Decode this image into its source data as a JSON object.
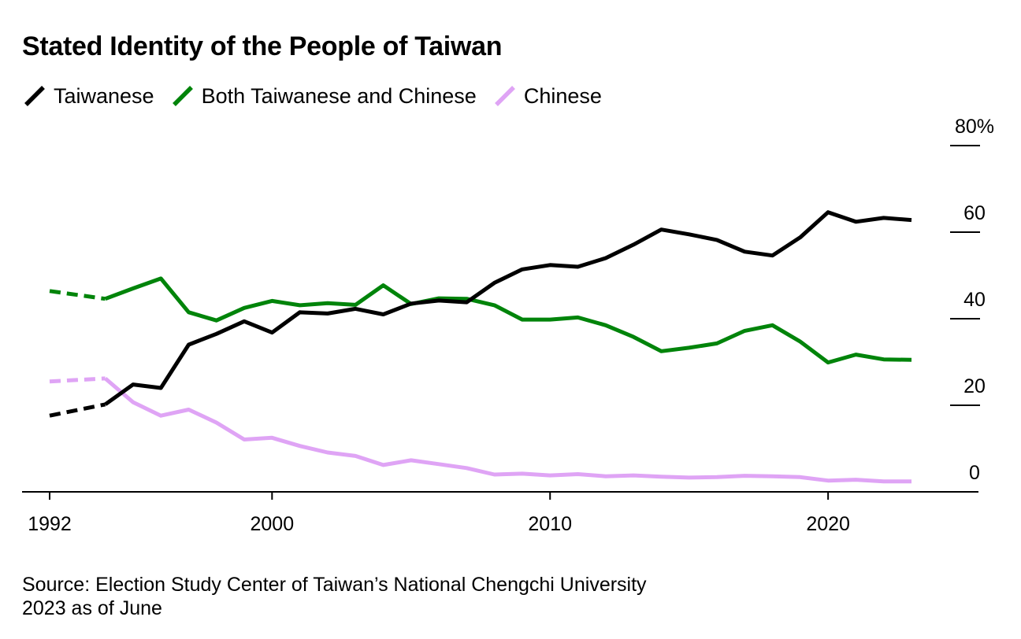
{
  "chart_data": {
    "type": "line",
    "title": "Stated Identity of the People of Taiwan",
    "xlabel": "",
    "ylabel": "",
    "xlim": [
      1991,
      2025.5
    ],
    "ylim": [
      0,
      80
    ],
    "y_unit_suffix": "%",
    "y_ticks": [
      0,
      20,
      40,
      60,
      80
    ],
    "y_tick_labels": [
      "0",
      "20",
      "40",
      "60",
      "80%"
    ],
    "x_ticks": [
      1992,
      2000,
      2010,
      2020
    ],
    "x_tick_labels": [
      "1992",
      "2000",
      "2010",
      "2020"
    ],
    "grid": false,
    "legend_position": "top-left",
    "note": "Dashed segment connects 1992 and 1994 (no survey data for 1993)",
    "series": [
      {
        "name": "Taiwanese",
        "color": "#000000",
        "x": [
          1992,
          1994,
          1995,
          1996,
          1997,
          1998,
          1999,
          2000,
          2001,
          2002,
          2003,
          2004,
          2005,
          2006,
          2007,
          2008,
          2009,
          2010,
          2011,
          2012,
          2013,
          2014,
          2015,
          2016,
          2017,
          2018,
          2019,
          2020,
          2021,
          2022,
          2023
        ],
        "values": [
          17.6,
          20.2,
          24.8,
          24.0,
          34.0,
          36.5,
          39.4,
          36.8,
          41.5,
          41.2,
          42.3,
          41.0,
          43.5,
          44.2,
          43.8,
          48.3,
          51.4,
          52.4,
          52.0,
          54.0,
          57.1,
          60.6,
          59.5,
          58.2,
          55.5,
          54.6,
          58.8,
          64.6,
          62.4,
          63.3,
          62.8
        ]
      },
      {
        "name": "Both Taiwanese and Chinese",
        "color": "#00840a",
        "x": [
          1992,
          1994,
          1995,
          1996,
          1997,
          1998,
          1999,
          2000,
          2001,
          2002,
          2003,
          2004,
          2005,
          2006,
          2007,
          2008,
          2009,
          2010,
          2011,
          2012,
          2013,
          2014,
          2015,
          2016,
          2017,
          2018,
          2019,
          2020,
          2021,
          2022,
          2023
        ],
        "values": [
          46.4,
          44.6,
          47.0,
          49.3,
          41.5,
          39.6,
          42.5,
          44.1,
          43.1,
          43.6,
          43.2,
          47.7,
          43.4,
          44.7,
          44.6,
          43.1,
          39.8,
          39.8,
          40.3,
          38.5,
          35.8,
          32.5,
          33.3,
          34.3,
          37.2,
          38.5,
          34.7,
          29.9,
          31.7,
          30.6,
          30.5
        ]
      },
      {
        "name": "Chinese",
        "color": "#dfa4f5",
        "x": [
          1992,
          1994,
          1995,
          1996,
          1997,
          1998,
          1999,
          2000,
          2001,
          2002,
          2003,
          2004,
          2005,
          2006,
          2007,
          2008,
          2009,
          2010,
          2011,
          2012,
          2013,
          2014,
          2015,
          2016,
          2017,
          2018,
          2019,
          2020,
          2021,
          2022,
          2023
        ],
        "values": [
          25.5,
          26.2,
          20.7,
          17.6,
          19.0,
          16.0,
          12.1,
          12.5,
          10.6,
          9.1,
          8.3,
          6.2,
          7.3,
          6.4,
          5.5,
          4.0,
          4.2,
          3.8,
          4.1,
          3.6,
          3.8,
          3.5,
          3.3,
          3.4,
          3.7,
          3.6,
          3.4,
          2.6,
          2.8,
          2.4,
          2.4
        ]
      }
    ]
  },
  "source_text": "Source: Election Study Center of Taiwan’s National Chengchi University",
  "note_text": "2023 as of June"
}
